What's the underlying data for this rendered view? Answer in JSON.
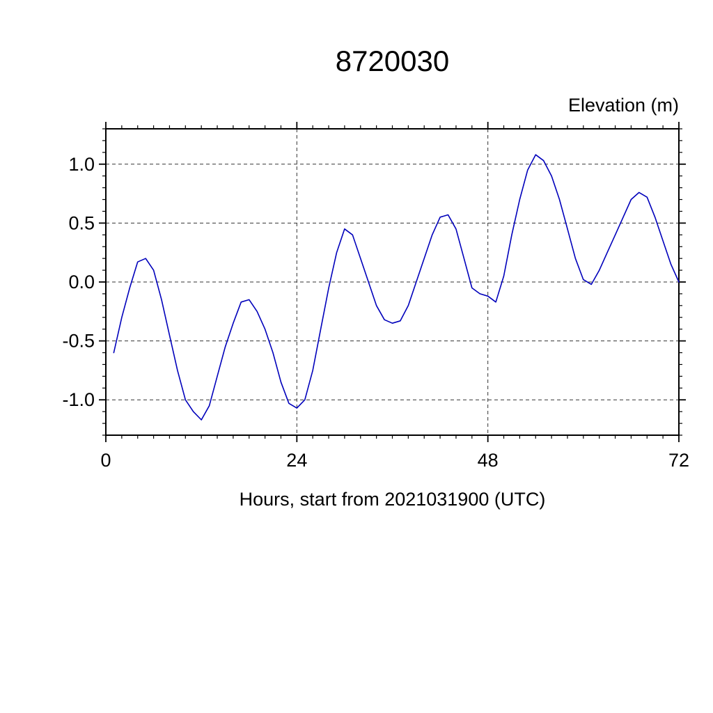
{
  "title": "8720030",
  "ylabel": "Elevation (m)",
  "xlabel": "Hours, start from 2021031900 (UTC)",
  "chart_data": {
    "type": "line",
    "title": "8720030",
    "xlabel": "Hours, start from 2021031900 (UTC)",
    "ylabel": "Elevation (m)",
    "xlim": [
      0,
      72
    ],
    "ylim": [
      -1.3,
      1.3
    ],
    "xticks": [
      0,
      24,
      48,
      72
    ],
    "xtick_labels": [
      "0",
      "24",
      "48",
      "72"
    ],
    "yticks": [
      -1.0,
      -0.5,
      0.0,
      0.5,
      1.0
    ],
    "ytick_labels": [
      "-1.0",
      "-0.5",
      "0.0",
      "0.5",
      "1.0"
    ],
    "x_minor_step": 2,
    "y_minor_step": 0.1,
    "grid_x": [
      24,
      48
    ],
    "grid_y": [
      -1.0,
      -0.5,
      0.0,
      0.5,
      1.0
    ],
    "grid_style": "dashed",
    "legend": "none",
    "series": [
      {
        "name": "elevation",
        "color": "#0000bb",
        "x": [
          1,
          2,
          3,
          4,
          5,
          6,
          7,
          8,
          9,
          10,
          11,
          12,
          13,
          14,
          15,
          16,
          17,
          18,
          19,
          20,
          21,
          22,
          23,
          24,
          25,
          26,
          27,
          28,
          29,
          30,
          31,
          32,
          33,
          34,
          35,
          36,
          37,
          38,
          39,
          40,
          41,
          42,
          43,
          44,
          45,
          46,
          47,
          48,
          49,
          50,
          51,
          52,
          53,
          54,
          55,
          56,
          57,
          58,
          59,
          60,
          61,
          62,
          63,
          64,
          65,
          66,
          67,
          68,
          69,
          70,
          71,
          72
        ],
        "y": [
          -0.6,
          -0.3,
          -0.05,
          0.17,
          0.2,
          0.1,
          -0.15,
          -0.45,
          -0.75,
          -1.0,
          -1.1,
          -1.17,
          -1.05,
          -0.8,
          -0.55,
          -0.35,
          -0.17,
          -0.15,
          -0.25,
          -0.4,
          -0.6,
          -0.85,
          -1.03,
          -1.07,
          -1.0,
          -0.75,
          -0.4,
          -0.05,
          0.25,
          0.45,
          0.4,
          0.2,
          0.0,
          -0.2,
          -0.32,
          -0.35,
          -0.33,
          -0.2,
          0.0,
          0.2,
          0.4,
          0.55,
          0.57,
          0.45,
          0.2,
          -0.05,
          -0.1,
          -0.12,
          -0.17,
          0.05,
          0.4,
          0.7,
          0.95,
          1.08,
          1.03,
          0.9,
          0.7,
          0.45,
          0.2,
          0.02,
          -0.02,
          0.1,
          0.25,
          0.4,
          0.55,
          0.7,
          0.76,
          0.72,
          0.55,
          0.35,
          0.15,
          0.0
        ]
      }
    ]
  }
}
